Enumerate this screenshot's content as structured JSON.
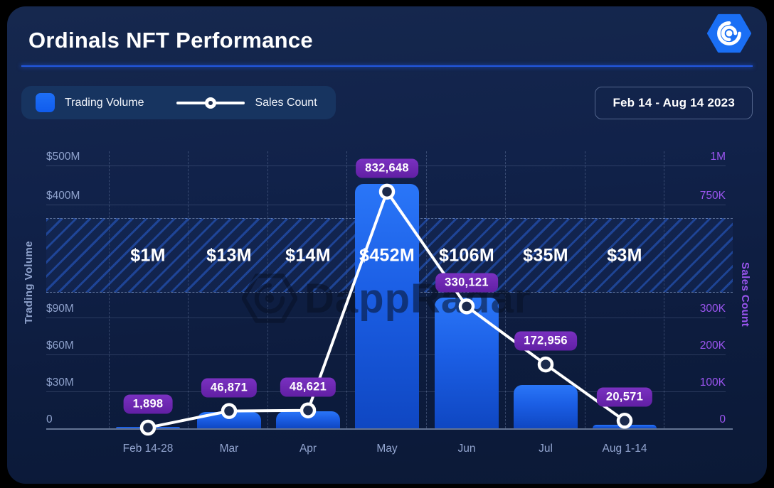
{
  "header": {
    "title": "Ordinals NFT Performance",
    "date_range": "Feb 14 - Aug 14 2023",
    "logo": "dappradar-logo"
  },
  "legend": {
    "volume": "Trading Volume",
    "sales": "Sales Count"
  },
  "watermark": {
    "text": "DappRadar"
  },
  "colors": {
    "bar_blue": "#1d63f2",
    "badge_purple": "#6b2aa8",
    "left_axis_text": "#8fa2cc",
    "right_axis_text": "#9b55f0",
    "divider_blue": "#2257e0",
    "line_white": "#ffffff",
    "card_bg": "#12224a"
  },
  "chart_data": {
    "type": "combo: bar (Trading Volume) + line (Sales Count), broken y-axes",
    "categories": [
      "Feb 14-28",
      "Mar",
      "Apr",
      "May",
      "Jun",
      "Jul",
      "Aug 1-14"
    ],
    "series": [
      {
        "name": "Trading Volume",
        "chart": "bar",
        "axis": "left",
        "unit": "USD millions",
        "values": [
          1,
          13,
          14,
          452,
          106,
          35,
          3
        ],
        "labels": [
          "$1M",
          "$13M",
          "$14M",
          "$452M",
          "$106M",
          "$35M",
          "$3M"
        ]
      },
      {
        "name": "Sales Count",
        "chart": "line",
        "axis": "right",
        "values": [
          1898,
          46871,
          48621,
          832648,
          330121,
          172956,
          20571
        ],
        "labels": [
          "1,898",
          "46,871",
          "48,621",
          "832,648",
          "330,121",
          "172,956",
          "20,571"
        ]
      }
    ],
    "left_axis": {
      "title": "Trading Volume",
      "lower_ticks": [
        "0",
        "$30M",
        "$60M",
        "$90M"
      ],
      "upper_ticks": [
        "$400M",
        "$500M"
      ]
    },
    "right_axis": {
      "title": "Sales Count",
      "lower_ticks": [
        "0",
        "100K",
        "200K",
        "300K"
      ],
      "upper_ticks": [
        "750K",
        "1M"
      ]
    },
    "axis_break": {
      "present": true,
      "style": "hatched band with per-category volume labels inside"
    },
    "grid": {
      "horizontal": true,
      "vertical": "dashed"
    },
    "legend_position": "top-left"
  }
}
